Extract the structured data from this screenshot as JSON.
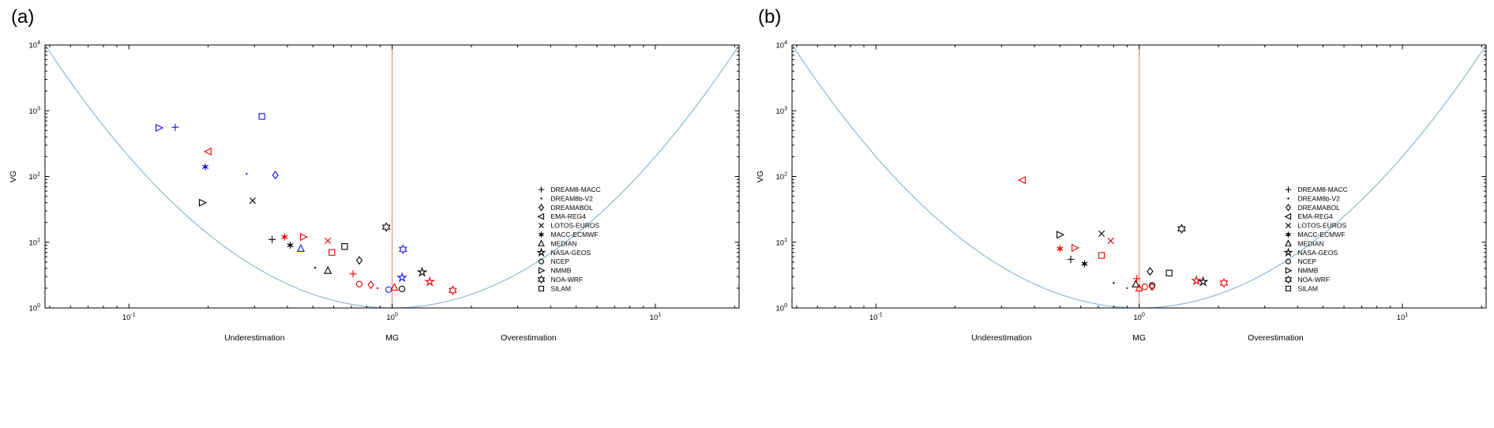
{
  "figure": {
    "type": "two-panel scatter figure",
    "description": "Log-log MG vs VG model evaluation diagram with theoretical minimum curve"
  },
  "colors": {
    "black": "#000000",
    "red": "#f00000",
    "blue": "#1414e6",
    "curve": "#8cb8d8",
    "reference": "#e8796a",
    "text": "#000000"
  },
  "legend": {
    "entries": [
      {
        "label": "DREAM8-MACC",
        "marker": "plus"
      },
      {
        "label": "DREAM8b-V2",
        "marker": "dot"
      },
      {
        "label": "DREAMABOL",
        "marker": "diamond"
      },
      {
        "label": "EMA-REG4",
        "marker": "triangle-left"
      },
      {
        "label": "LOTOS-EUROS",
        "marker": "cross"
      },
      {
        "label": "MACC-ECMWF",
        "marker": "asterisk-dot"
      },
      {
        "label": "MEDIAN",
        "marker": "triangle-up"
      },
      {
        "label": "NASA-GEOS",
        "marker": "pentagram"
      },
      {
        "label": "NCEP",
        "marker": "circle"
      },
      {
        "label": "NMMB",
        "marker": "triangle-right"
      },
      {
        "label": "NOA-WRF",
        "marker": "hexagram"
      },
      {
        "label": "SILAM",
        "marker": "square"
      }
    ]
  },
  "chart_data": [
    {
      "panel": "(a)",
      "type": "scatter",
      "xlabel": "MG",
      "ylabel": "VG",
      "xlim": [
        0.048,
        20.8
      ],
      "ylim": [
        1,
        10000
      ],
      "x_tick_exponents": [
        -1,
        0,
        1
      ],
      "y_tick_exponents": [
        0,
        1,
        2,
        3,
        4
      ],
      "annotations": {
        "left": "Underestimation",
        "right": "Overestimation"
      },
      "reference_line_x": 1,
      "curve_formula": "VG = exp((ln MG)^2)",
      "points": [
        {
          "model": "NMMB",
          "color": "blue",
          "x": 0.13,
          "y": 550
        },
        {
          "model": "DREAM8-MACC",
          "color": "blue",
          "x": 0.15,
          "y": 560
        },
        {
          "model": "MACC-ECMWF",
          "color": "blue",
          "x": 0.195,
          "y": 140
        },
        {
          "model": "DREAM8b-V2",
          "color": "blue",
          "x": 0.28,
          "y": 110
        },
        {
          "model": "SILAM",
          "color": "blue",
          "x": 0.32,
          "y": 820
        },
        {
          "model": "DREAMABOL",
          "color": "blue",
          "x": 0.36,
          "y": 105
        },
        {
          "model": "MEDIAN",
          "color": "blue",
          "x": 0.45,
          "y": 8
        },
        {
          "model": "NOA-WRF",
          "color": "blue",
          "x": 1.1,
          "y": 7.8
        },
        {
          "model": "NASA-GEOS",
          "color": "blue",
          "x": 1.09,
          "y": 2.9
        },
        {
          "model": "NCEP",
          "color": "blue",
          "x": 0.97,
          "y": 1.9
        },
        {
          "model": "NMMB",
          "color": "black",
          "x": 0.19,
          "y": 40
        },
        {
          "model": "LOTOS-EUROS",
          "color": "black",
          "x": 0.295,
          "y": 43
        },
        {
          "model": "DREAM8-MACC",
          "color": "black",
          "x": 0.35,
          "y": 11
        },
        {
          "model": "MACC-ECMWF",
          "color": "black",
          "x": 0.41,
          "y": 9
        },
        {
          "model": "DREAM8b-V2",
          "color": "black",
          "x": 0.51,
          "y": 4.1
        },
        {
          "model": "MEDIAN",
          "color": "black",
          "x": 0.57,
          "y": 3.7
        },
        {
          "model": "SILAM",
          "color": "black",
          "x": 0.66,
          "y": 8.6
        },
        {
          "model": "DREAMABOL",
          "color": "black",
          "x": 0.75,
          "y": 5.3
        },
        {
          "model": "NOA-WRF",
          "color": "black",
          "x": 0.95,
          "y": 17
        },
        {
          "model": "NCEP",
          "color": "black",
          "x": 1.09,
          "y": 1.95
        },
        {
          "model": "NASA-GEOS",
          "color": "black",
          "x": 1.3,
          "y": 3.5
        },
        {
          "model": "EMA-REG4",
          "color": "red",
          "x": 0.2,
          "y": 240
        },
        {
          "model": "MACC-ECMWF",
          "color": "red",
          "x": 0.39,
          "y": 12
        },
        {
          "model": "NMMB",
          "color": "red",
          "x": 0.46,
          "y": 12
        },
        {
          "model": "LOTOS-EUROS",
          "color": "red",
          "x": 0.57,
          "y": 10.5
        },
        {
          "model": "SILAM",
          "color": "red",
          "x": 0.59,
          "y": 7
        },
        {
          "model": "DREAM8-MACC",
          "color": "red",
          "x": 0.71,
          "y": 3.3
        },
        {
          "model": "NCEP",
          "color": "red",
          "x": 0.75,
          "y": 2.3
        },
        {
          "model": "DREAMABOL",
          "color": "red",
          "x": 0.83,
          "y": 2.25
        },
        {
          "model": "DREAM8b-V2",
          "color": "red",
          "x": 0.88,
          "y": 2.0
        },
        {
          "model": "MEDIAN",
          "color": "red",
          "x": 1.02,
          "y": 2.05
        },
        {
          "model": "NASA-GEOS",
          "color": "red",
          "x": 1.39,
          "y": 2.5
        },
        {
          "model": "NOA-WRF",
          "color": "red",
          "x": 1.7,
          "y": 1.85
        }
      ]
    },
    {
      "panel": "(b)",
      "type": "scatter",
      "xlabel": "MG",
      "ylabel": "VG",
      "xlim": [
        0.048,
        20.8
      ],
      "ylim": [
        1,
        10000
      ],
      "x_tick_exponents": [
        -1,
        0,
        1
      ],
      "y_tick_exponents": [
        0,
        1,
        2,
        3,
        4
      ],
      "annotations": {
        "left": "Underestimation",
        "right": "Overestimation"
      },
      "reference_line_x": 1,
      "curve_formula": "VG = exp((ln MG)^2)",
      "points": [
        {
          "model": "NMMB",
          "color": "black",
          "x": 0.5,
          "y": 13
        },
        {
          "model": "LOTOS-EUROS",
          "color": "black",
          "x": 0.72,
          "y": 13.5
        },
        {
          "model": "DREAM8-MACC",
          "color": "black",
          "x": 0.55,
          "y": 5.5
        },
        {
          "model": "MACC-ECMWF",
          "color": "black",
          "x": 0.62,
          "y": 4.7
        },
        {
          "model": "DREAM8b-V2",
          "color": "black",
          "x": 0.8,
          "y": 2.4
        },
        {
          "model": "MEDIAN",
          "color": "black",
          "x": 0.97,
          "y": 2.3
        },
        {
          "model": "DREAMABOL",
          "color": "black",
          "x": 1.1,
          "y": 3.6
        },
        {
          "model": "SILAM",
          "color": "black",
          "x": 1.3,
          "y": 3.4
        },
        {
          "model": "NCEP",
          "color": "black",
          "x": 1.12,
          "y": 2.2
        },
        {
          "model": "NOA-WRF",
          "color": "black",
          "x": 1.45,
          "y": 16
        },
        {
          "model": "NASA-GEOS",
          "color": "black",
          "x": 1.75,
          "y": 2.5
        },
        {
          "model": "EMA-REG4",
          "color": "red",
          "x": 0.36,
          "y": 88
        },
        {
          "model": "MACC-ECMWF",
          "color": "red",
          "x": 0.5,
          "y": 8
        },
        {
          "model": "NMMB",
          "color": "red",
          "x": 0.57,
          "y": 8.2
        },
        {
          "model": "SILAM",
          "color": "red",
          "x": 0.72,
          "y": 6.3
        },
        {
          "model": "LOTOS-EUROS",
          "color": "red",
          "x": 0.78,
          "y": 10.5
        },
        {
          "model": "DREAM8b-V2",
          "color": "red",
          "x": 0.9,
          "y": 2.0
        },
        {
          "model": "DREAM8-MACC",
          "color": "red",
          "x": 0.98,
          "y": 2.8
        },
        {
          "model": "MEDIAN",
          "color": "red",
          "x": 1.0,
          "y": 2.0
        },
        {
          "model": "NCEP",
          "color": "red",
          "x": 1.05,
          "y": 2.1
        },
        {
          "model": "DREAMABOL",
          "color": "red",
          "x": 1.12,
          "y": 2.1
        },
        {
          "model": "NASA-GEOS",
          "color": "red",
          "x": 1.65,
          "y": 2.6
        },
        {
          "model": "NOA-WRF",
          "color": "red",
          "x": 2.1,
          "y": 2.4
        }
      ]
    }
  ]
}
